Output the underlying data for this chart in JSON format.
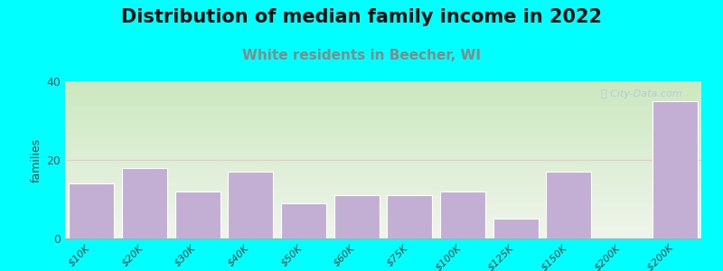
{
  "title": "Distribution of median family income in 2022",
  "subtitle": "White residents in Beecher, WI",
  "categories": [
    "$10K",
    "$20K",
    "$30K",
    "$40K",
    "$50K",
    "$60K",
    "$75K",
    "$100K",
    "$125K",
    "$150K",
    "$200K",
    "> $200K"
  ],
  "values": [
    14,
    18,
    12,
    17,
    9,
    11,
    11,
    12,
    5,
    17,
    0,
    35
  ],
  "bar_color": "#c4afd4",
  "bar_edgecolor": "#ffffff",
  "background_color": "#00ffff",
  "plot_bg_top_color": "#cce8c0",
  "plot_bg_bottom_color": "#f0f5ec",
  "ylabel": "families",
  "ylim": [
    0,
    40
  ],
  "yticks": [
    0,
    20,
    40
  ],
  "gridline_color": "#e8c8c8",
  "title_fontsize": 15,
  "subtitle_fontsize": 11,
  "subtitle_color": "#888888",
  "watermark": "City-Data.com",
  "watermark_color": "#b0c8d8"
}
